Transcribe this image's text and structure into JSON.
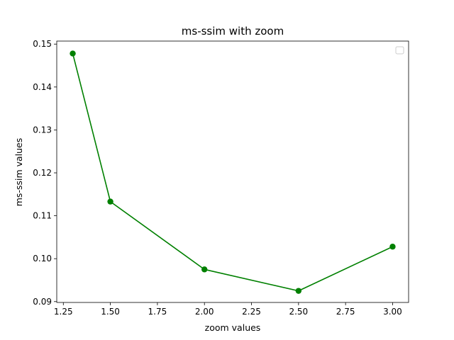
{
  "chart_data": {
    "type": "line",
    "title": "ms-ssim with zoom",
    "xlabel": "zoom values",
    "ylabel": "ms-ssim values",
    "xlim": [
      1.215,
      3.085
    ],
    "ylim": [
      0.0898,
      0.1507
    ],
    "x_ticks": [
      1.25,
      1.5,
      1.75,
      2.0,
      2.25,
      2.5,
      2.75,
      3.0
    ],
    "x_tick_labels": [
      "1.25",
      "1.50",
      "1.75",
      "2.00",
      "2.25",
      "2.50",
      "2.75",
      "3.00"
    ],
    "y_ticks": [
      0.09,
      0.1,
      0.11,
      0.12,
      0.13,
      0.14,
      0.15
    ],
    "y_tick_labels": [
      "0.09",
      "0.10",
      "0.11",
      "0.12",
      "0.13",
      "0.14",
      "0.15"
    ],
    "series": [
      {
        "color": "#008000",
        "marker": "circle",
        "x": [
          1.3,
          1.5,
          2.0,
          2.5,
          3.0
        ],
        "y": [
          0.1478,
          0.1133,
          0.0975,
          0.0925,
          0.1028
        ]
      }
    ],
    "legend": {
      "placement": "top-right",
      "entries": []
    },
    "grid": false
  }
}
